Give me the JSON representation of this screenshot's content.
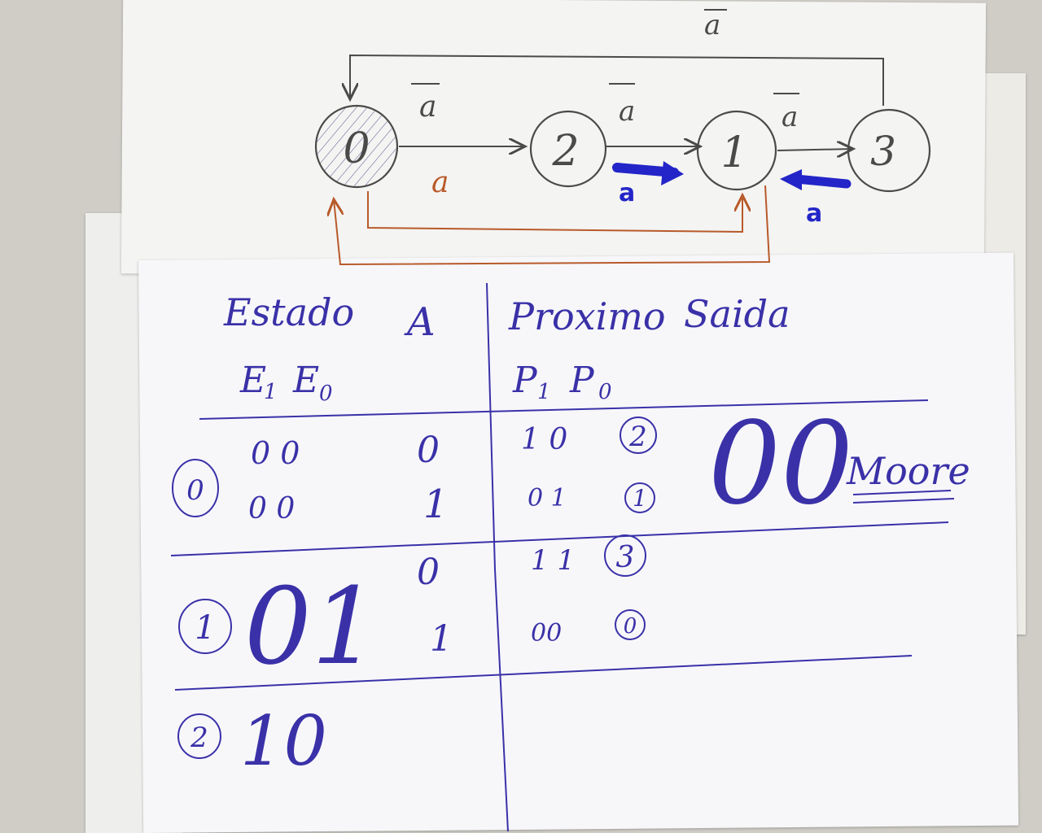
{
  "diagram": {
    "states": [
      "0",
      "2",
      "1",
      "3"
    ],
    "edge_labels": {
      "not_a": "a",
      "a": "a"
    }
  },
  "table": {
    "headers": {
      "estado": "Estado",
      "input": "A",
      "proximo": "Proximo",
      "saida": "Saida"
    },
    "subheaders": {
      "e1": "E",
      "e1_sub": "1",
      "e0": "E",
      "e0_sub": "0",
      "p1": "P",
      "p1_sub": "1",
      "p0": "P",
      "p0_sub": "0"
    },
    "rows": [
      {
        "state": "0",
        "e": "0 0",
        "a": "0",
        "p": "1 0",
        "next": "2"
      },
      {
        "state": "",
        "e": "0 0",
        "a": "1",
        "p": "0 1",
        "next": "1"
      },
      {
        "state": "1",
        "e": "01",
        "a": "0",
        "p": "1 1",
        "next": "3"
      },
      {
        "state": "",
        "e": "",
        "a": "1",
        "p": "00",
        "next": "0"
      },
      {
        "state": "2",
        "e": "10",
        "a": "",
        "p": "",
        "next": ""
      }
    ],
    "output": "00",
    "machine_type": "Moore"
  },
  "colors": {
    "pencil": "#4a4a48",
    "blue_pen": "#3a31a8",
    "marker": "#2325c8",
    "orange": "#b85a2a"
  }
}
